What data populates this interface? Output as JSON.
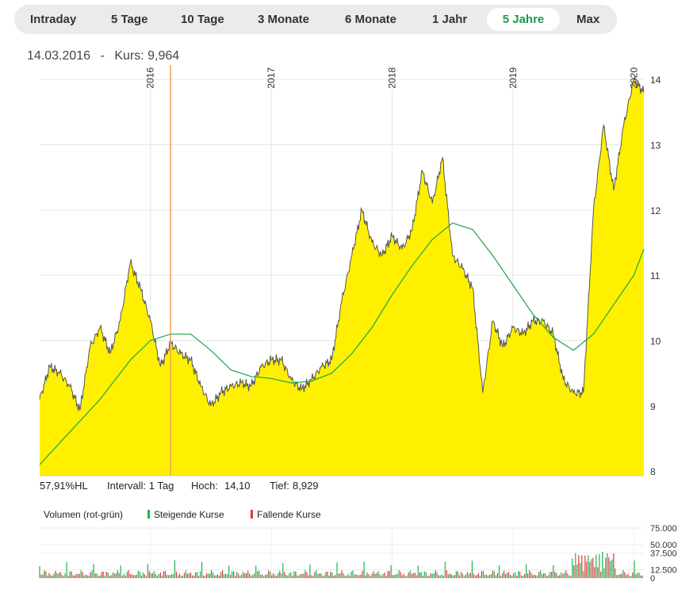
{
  "tabs": [
    {
      "label": "Intraday",
      "active": false
    },
    {
      "label": "5 Tage",
      "active": false
    },
    {
      "label": "10 Tage",
      "active": false
    },
    {
      "label": "3 Monate",
      "active": false
    },
    {
      "label": "6 Monate",
      "active": false
    },
    {
      "label": "1 Jahr",
      "active": false
    },
    {
      "label": "5 Jahre",
      "active": true
    },
    {
      "label": "Max",
      "active": false
    }
  ],
  "readout": {
    "date": "14.03.2016",
    "separator": "-",
    "label": "Kurs:",
    "value": "9,964"
  },
  "stats": {
    "hl": "57,91%HL",
    "interval": "Intervall: 1 Tag",
    "high_label": "Hoch:",
    "high_value": "14,10",
    "low_label": "Tief:",
    "low_value": "8,929"
  },
  "legend": {
    "volume": "Volumen (rot-grün)",
    "rising": "Steigende Kurse",
    "falling": "Fallende Kurse",
    "rising_color": "#1fb24a",
    "falling_color": "#e2323a"
  },
  "colors": {
    "area_fill": "#fff000",
    "price_line": "#555555",
    "average_line": "#1aa64a",
    "marker": "#f0a050",
    "active_tab": "#1b9a4a"
  },
  "chart_data": [
    {
      "type": "area",
      "x_start": "2015-02",
      "x_end": "2020-02",
      "x_ticks": [
        {
          "label": "2016",
          "at": "2016-01"
        },
        {
          "label": "2017",
          "at": "2017-01"
        },
        {
          "label": "2018",
          "at": "2018-01"
        },
        {
          "label": "2019",
          "at": "2019-01"
        },
        {
          "label": "2020",
          "at": "2020-01"
        }
      ],
      "y_ticks": [
        "8",
        "9",
        "10",
        "11",
        "12",
        "13",
        "14"
      ],
      "ylim": [
        7.93,
        14.22
      ],
      "marker": {
        "date": "14.03.2016",
        "value": 9.964
      },
      "series": [
        {
          "role": "price",
          "points": [
            [
              "2015-02",
              9.1
            ],
            [
              "2015-03",
              9.6
            ],
            [
              "2015-04",
              9.5
            ],
            [
              "2015-05",
              9.3
            ],
            [
              "2015-06",
              8.93
            ],
            [
              "2015-07",
              9.9
            ],
            [
              "2015-08",
              10.2
            ],
            [
              "2015-09",
              9.8
            ],
            [
              "2015-10",
              10.3
            ],
            [
              "2015-11",
              11.2
            ],
            [
              "2015-12",
              10.8
            ],
            [
              "2016-01",
              10.3
            ],
            [
              "2016-02",
              9.6
            ],
            [
              "2016-03",
              9.96
            ],
            [
              "2016-04",
              9.8
            ],
            [
              "2016-05",
              9.7
            ],
            [
              "2016-06",
              9.3
            ],
            [
              "2016-07",
              9.0
            ],
            [
              "2016-08",
              9.2
            ],
            [
              "2016-09",
              9.3
            ],
            [
              "2016-10",
              9.35
            ],
            [
              "2016-11",
              9.3
            ],
            [
              "2016-12",
              9.6
            ],
            [
              "2017-01",
              9.7
            ],
            [
              "2017-02",
              9.7
            ],
            [
              "2017-03",
              9.4
            ],
            [
              "2017-04",
              9.25
            ],
            [
              "2017-05",
              9.4
            ],
            [
              "2017-06",
              9.6
            ],
            [
              "2017-07",
              9.7
            ],
            [
              "2017-08",
              10.6
            ],
            [
              "2017-09",
              11.3
            ],
            [
              "2017-10",
              12.0
            ],
            [
              "2017-11",
              11.5
            ],
            [
              "2017-12",
              11.3
            ],
            [
              "2018-01",
              11.6
            ],
            [
              "2018-02",
              11.4
            ],
            [
              "2018-03",
              11.7
            ],
            [
              "2018-04",
              12.6
            ],
            [
              "2018-05",
              12.1
            ],
            [
              "2018-06",
              12.8
            ],
            [
              "2018-07",
              11.3
            ],
            [
              "2018-08",
              11.1
            ],
            [
              "2018-09",
              10.8
            ],
            [
              "2018-10",
              9.2
            ],
            [
              "2018-11",
              10.3
            ],
            [
              "2018-12",
              9.9
            ],
            [
              "2019-01",
              10.2
            ],
            [
              "2019-02",
              10.1
            ],
            [
              "2019-03",
              10.3
            ],
            [
              "2019-04",
              10.3
            ],
            [
              "2019-05",
              10.1
            ],
            [
              "2019-06",
              9.4
            ],
            [
              "2019-07",
              9.2
            ],
            [
              "2019-08",
              9.2
            ],
            [
              "2019-09",
              12.0
            ],
            [
              "2019-10",
              13.3
            ],
            [
              "2019-11",
              12.3
            ],
            [
              "2019-12",
              13.3
            ],
            [
              "2020-01",
              14.0
            ],
            [
              "2020-02",
              13.8
            ]
          ]
        },
        {
          "role": "moving_average",
          "points": [
            [
              "2015-02",
              8.1
            ],
            [
              "2015-05",
              8.6
            ],
            [
              "2015-08",
              9.1
            ],
            [
              "2015-11",
              9.7
            ],
            [
              "2016-01",
              10.0
            ],
            [
              "2016-03",
              10.1
            ],
            [
              "2016-05",
              10.1
            ],
            [
              "2016-07",
              9.85
            ],
            [
              "2016-09",
              9.55
            ],
            [
              "2016-11",
              9.45
            ],
            [
              "2017-01",
              9.42
            ],
            [
              "2017-03",
              9.35
            ],
            [
              "2017-05",
              9.38
            ],
            [
              "2017-07",
              9.5
            ],
            [
              "2017-09",
              9.8
            ],
            [
              "2017-11",
              10.2
            ],
            [
              "2018-01",
              10.7
            ],
            [
              "2018-03",
              11.15
            ],
            [
              "2018-05",
              11.55
            ],
            [
              "2018-07",
              11.8
            ],
            [
              "2018-09",
              11.7
            ],
            [
              "2018-11",
              11.3
            ],
            [
              "2019-01",
              10.85
            ],
            [
              "2019-03",
              10.4
            ],
            [
              "2019-05",
              10.05
            ],
            [
              "2019-07",
              9.85
            ],
            [
              "2019-09",
              10.1
            ],
            [
              "2019-11",
              10.55
            ],
            [
              "2020-01",
              11.0
            ],
            [
              "2020-02",
              11.4
            ]
          ]
        }
      ]
    },
    {
      "type": "bar",
      "y_ticks": [
        "75.000",
        "50.000",
        "37.500",
        "12.500",
        "0"
      ],
      "ylim": [
        0,
        75000
      ],
      "notes": "daily volume bars, green = rising, red = falling; spikes near 2019-09"
    }
  ]
}
